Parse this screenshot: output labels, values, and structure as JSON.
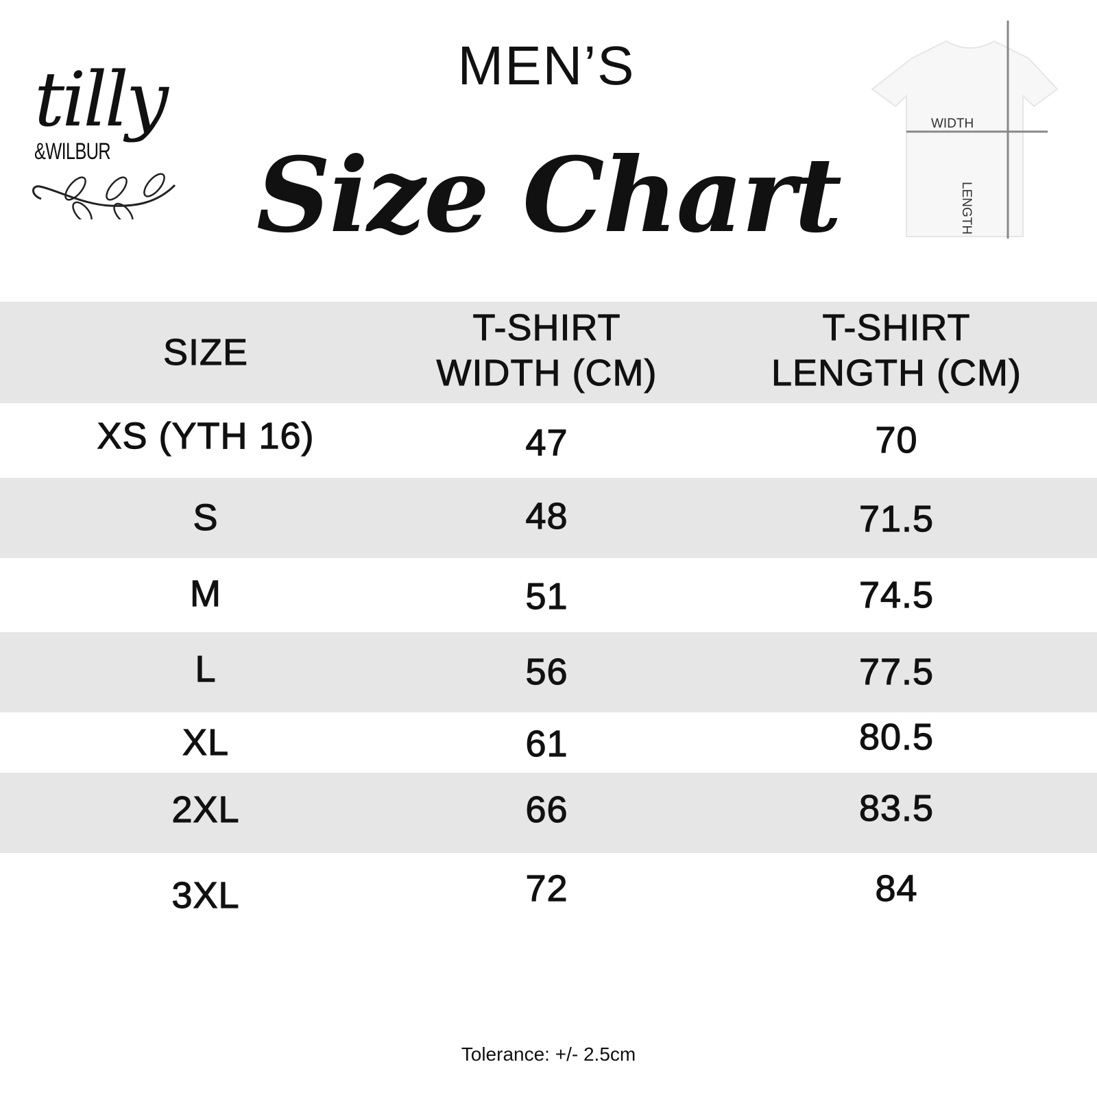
{
  "brand": {
    "logo_text": "tilly",
    "logo_subtext": "&WILBUR"
  },
  "heading": {
    "gender": "MEN’S",
    "title": "Size Chart"
  },
  "diagram": {
    "width_label": "WIDTH",
    "length_label": "LENGTH"
  },
  "colors": {
    "header_band": "#e6e6e6",
    "stripe": "#e6e6e6",
    "measure_line": "#888888"
  },
  "table": {
    "headers": [
      "SIZE",
      "T-SHIRT WIDTH (CM)",
      "T-SHIRT LENGTH (CM)"
    ],
    "header_lines": [
      [
        "SIZE"
      ],
      [
        "T-SHIRT",
        "WIDTH (CM)"
      ],
      [
        "T-SHIRT",
        "LENGTH (CM)"
      ]
    ],
    "rows": [
      {
        "size": "XS (YTH 16)",
        "width": "47",
        "length": "70"
      },
      {
        "size": "S",
        "width": "48",
        "length": "71.5"
      },
      {
        "size": "M",
        "width": "51",
        "length": "74.5"
      },
      {
        "size": "L",
        "width": "56",
        "length": "77.5"
      },
      {
        "size": "XL",
        "width": "61",
        "length": "80.5"
      },
      {
        "size": "2XL",
        "width": "66",
        "length": "83.5"
      },
      {
        "size": "3XL",
        "width": "72",
        "length": "84"
      }
    ]
  },
  "footer": {
    "tolerance": "Tolerance: +/- 2.5cm"
  }
}
